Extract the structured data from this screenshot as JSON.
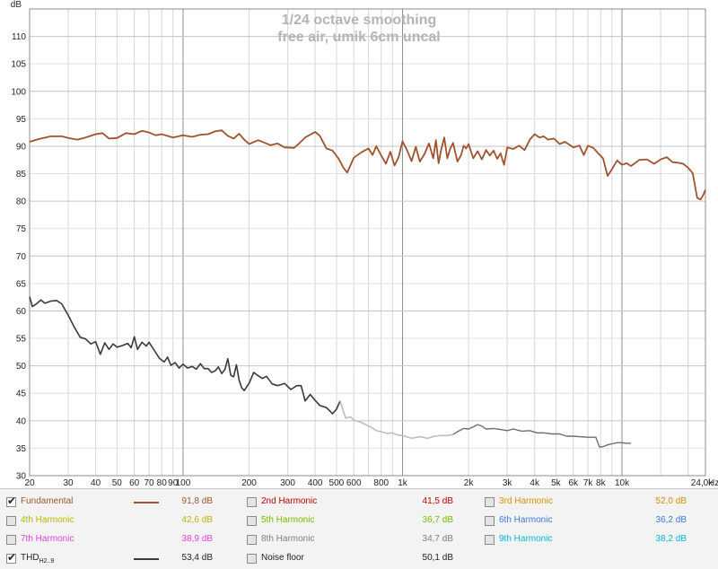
{
  "chart_data": {
    "type": "line",
    "title": "1/24 octave smoothing",
    "subtitle": "free air, umik 6cm uncal",
    "xscale": "log",
    "xlim": [
      20,
      24000
    ],
    "ylim": [
      30,
      115
    ],
    "ylabel": "dB",
    "xlabel": "Hz",
    "grid": true,
    "yticks": [
      30,
      35,
      40,
      45,
      50,
      55,
      60,
      65,
      70,
      75,
      80,
      85,
      90,
      95,
      100,
      105,
      110
    ],
    "xticks": [
      {
        "v": 20,
        "label": "20"
      },
      {
        "v": 30,
        "label": "30"
      },
      {
        "v": 40,
        "label": "40"
      },
      {
        "v": 50,
        "label": "50"
      },
      {
        "v": 60,
        "label": "60"
      },
      {
        "v": 70,
        "label": "70"
      },
      {
        "v": 80,
        "label": "80"
      },
      {
        "v": 90,
        "label": "90"
      },
      {
        "v": 100,
        "label": "100"
      },
      {
        "v": 200,
        "label": "200"
      },
      {
        "v": 300,
        "label": "300"
      },
      {
        "v": 400,
        "label": "400"
      },
      {
        "v": 500,
        "label": "500"
      },
      {
        "v": 600,
        "label": "600"
      },
      {
        "v": 800,
        "label": "800"
      },
      {
        "v": 1000,
        "label": "1k"
      },
      {
        "v": 2000,
        "label": "2k"
      },
      {
        "v": 3000,
        "label": "3k"
      },
      {
        "v": 4000,
        "label": "4k"
      },
      {
        "v": 5000,
        "label": "5k"
      },
      {
        "v": 6000,
        "label": "6k"
      },
      {
        "v": 7000,
        "label": "7k"
      },
      {
        "v": 8000,
        "label": "8k"
      },
      {
        "v": 10000,
        "label": "10k"
      },
      {
        "v": 24000,
        "label": "24,0k"
      }
    ],
    "series": [
      {
        "name": "Fundamental",
        "color": "#a0522d",
        "points": [
          [
            20,
            90.8
          ],
          [
            22,
            91.3
          ],
          [
            25,
            91.8
          ],
          [
            28,
            91.8
          ],
          [
            30,
            91.5
          ],
          [
            33,
            91.2
          ],
          [
            36,
            91.6
          ],
          [
            40,
            92.2
          ],
          [
            43,
            92.4
          ],
          [
            46,
            91.4
          ],
          [
            50,
            91.5
          ],
          [
            55,
            92.4
          ],
          [
            60,
            92.2
          ],
          [
            65,
            92.8
          ],
          [
            70,
            92.5
          ],
          [
            75,
            92.0
          ],
          [
            80,
            92.2
          ],
          [
            90,
            91.6
          ],
          [
            100,
            92.0
          ],
          [
            110,
            91.7
          ],
          [
            120,
            92.1
          ],
          [
            130,
            92.2
          ],
          [
            140,
            92.7
          ],
          [
            150,
            92.9
          ],
          [
            160,
            91.9
          ],
          [
            170,
            91.4
          ],
          [
            180,
            92.3
          ],
          [
            190,
            91.2
          ],
          [
            200,
            90.4
          ],
          [
            220,
            91.1
          ],
          [
            250,
            90.2
          ],
          [
            270,
            90.5
          ],
          [
            290,
            89.8
          ],
          [
            320,
            89.7
          ],
          [
            340,
            90.6
          ],
          [
            360,
            91.6
          ],
          [
            400,
            92.6
          ],
          [
            420,
            91.9
          ],
          [
            450,
            89.6
          ],
          [
            480,
            89.2
          ],
          [
            510,
            87.8
          ],
          [
            540,
            86.0
          ],
          [
            560,
            85.2
          ],
          [
            600,
            87.9
          ],
          [
            650,
            88.9
          ],
          [
            700,
            89.6
          ],
          [
            730,
            88.4
          ],
          [
            760,
            90.0
          ],
          [
            800,
            88.3
          ],
          [
            840,
            86.8
          ],
          [
            880,
            89.0
          ],
          [
            920,
            86.5
          ],
          [
            960,
            88.0
          ],
          [
            1000,
            90.9
          ],
          [
            1050,
            89.2
          ],
          [
            1100,
            87.3
          ],
          [
            1150,
            89.9
          ],
          [
            1200,
            87.2
          ],
          [
            1260,
            88.6
          ],
          [
            1320,
            90.5
          ],
          [
            1380,
            87.8
          ],
          [
            1420,
            91.1
          ],
          [
            1460,
            86.9
          ],
          [
            1500,
            89.3
          ],
          [
            1550,
            91.6
          ],
          [
            1600,
            87.8
          ],
          [
            1650,
            89.6
          ],
          [
            1700,
            90.6
          ],
          [
            1780,
            87.2
          ],
          [
            1850,
            88.4
          ],
          [
            1900,
            90.1
          ],
          [
            1950,
            89.6
          ],
          [
            2000,
            90.4
          ],
          [
            2100,
            87.8
          ],
          [
            2200,
            89.1
          ],
          [
            2300,
            87.6
          ],
          [
            2400,
            89.3
          ],
          [
            2500,
            88.3
          ],
          [
            2600,
            89.2
          ],
          [
            2700,
            87.7
          ],
          [
            2800,
            88.7
          ],
          [
            2900,
            86.6
          ],
          [
            3000,
            89.8
          ],
          [
            3200,
            89.5
          ],
          [
            3400,
            90.1
          ],
          [
            3600,
            89.3
          ],
          [
            3800,
            91.2
          ],
          [
            4000,
            92.2
          ],
          [
            4200,
            91.6
          ],
          [
            4400,
            91.8
          ],
          [
            4600,
            91.2
          ],
          [
            4900,
            91.4
          ],
          [
            5200,
            90.4
          ],
          [
            5500,
            90.8
          ],
          [
            6000,
            89.8
          ],
          [
            6400,
            90.1
          ],
          [
            6700,
            88.4
          ],
          [
            7000,
            90.1
          ],
          [
            7400,
            89.7
          ],
          [
            7800,
            88.7
          ],
          [
            8200,
            87.8
          ],
          [
            8600,
            84.6
          ],
          [
            9000,
            85.8
          ],
          [
            9500,
            87.4
          ],
          [
            10000,
            86.6
          ],
          [
            10500,
            86.9
          ],
          [
            11000,
            86.4
          ],
          [
            12000,
            87.5
          ],
          [
            13000,
            87.6
          ],
          [
            14000,
            86.8
          ],
          [
            15000,
            87.6
          ],
          [
            16000,
            88.0
          ],
          [
            17000,
            87.1
          ],
          [
            18000,
            87.0
          ],
          [
            19000,
            86.8
          ],
          [
            20000,
            86.1
          ],
          [
            21000,
            85.1
          ],
          [
            22000,
            80.6
          ],
          [
            22800,
            80.3
          ],
          [
            23500,
            81.2
          ],
          [
            24000,
            82.1
          ]
        ]
      },
      {
        "name": "THD H2..9",
        "color": "#3a3a3a",
        "points": [
          [
            20,
            62.6
          ],
          [
            20.6,
            60.8
          ],
          [
            21.5,
            61.3
          ],
          [
            22.5,
            62.0
          ],
          [
            23.5,
            61.4
          ],
          [
            25,
            61.8
          ],
          [
            26.5,
            61.9
          ],
          [
            28,
            61.3
          ],
          [
            30,
            59.2
          ],
          [
            32,
            57.0
          ],
          [
            34,
            55.2
          ],
          [
            36,
            54.9
          ],
          [
            38,
            54.0
          ],
          [
            40,
            54.4
          ],
          [
            42,
            52.1
          ],
          [
            44,
            54.2
          ],
          [
            46,
            53.0
          ],
          [
            48,
            54.0
          ],
          [
            50,
            53.4
          ],
          [
            53,
            53.7
          ],
          [
            56,
            54.1
          ],
          [
            58,
            53.3
          ],
          [
            60,
            55.3
          ],
          [
            62,
            53.0
          ],
          [
            65,
            54.3
          ],
          [
            68,
            53.6
          ],
          [
            70,
            54.3
          ],
          [
            74,
            52.8
          ],
          [
            78,
            51.4
          ],
          [
            82,
            50.7
          ],
          [
            85,
            51.6
          ],
          [
            88,
            50.1
          ],
          [
            92,
            50.6
          ],
          [
            96,
            49.6
          ],
          [
            100,
            50.3
          ],
          [
            105,
            49.6
          ],
          [
            110,
            49.9
          ],
          [
            115,
            49.4
          ],
          [
            120,
            50.4
          ],
          [
            125,
            49.5
          ],
          [
            130,
            49.5
          ],
          [
            135,
            48.8
          ],
          [
            140,
            49.1
          ],
          [
            145,
            49.8
          ],
          [
            150,
            48.6
          ],
          [
            155,
            49.3
          ],
          [
            160,
            51.3
          ],
          [
            165,
            48.3
          ],
          [
            170,
            48.0
          ],
          [
            175,
            50.2
          ],
          [
            180,
            47.4
          ],
          [
            185,
            46.0
          ],
          [
            190,
            45.5
          ],
          [
            195,
            46.2
          ],
          [
            200,
            46.8
          ],
          [
            210,
            48.8
          ],
          [
            220,
            48.2
          ],
          [
            230,
            47.7
          ],
          [
            240,
            48.1
          ],
          [
            255,
            46.7
          ],
          [
            270,
            46.4
          ],
          [
            290,
            46.8
          ],
          [
            310,
            45.7
          ],
          [
            330,
            46.4
          ],
          [
            345,
            46.4
          ],
          [
            360,
            43.6
          ],
          [
            380,
            44.8
          ],
          [
            400,
            43.7
          ],
          [
            420,
            42.8
          ],
          [
            450,
            42.4
          ],
          [
            480,
            41.3
          ],
          [
            500,
            42.1
          ],
          [
            520,
            43.6
          ],
          [
            550,
            40.5
          ],
          [
            580,
            40.7
          ],
          [
            600,
            40.1
          ],
          [
            640,
            39.8
          ],
          [
            680,
            39.3
          ],
          [
            720,
            38.8
          ],
          [
            760,
            38.2
          ],
          [
            800,
            38.0
          ],
          [
            850,
            37.7
          ],
          [
            900,
            37.8
          ],
          [
            950,
            37.4
          ],
          [
            1000,
            37.3
          ],
          [
            1100,
            36.8
          ],
          [
            1200,
            37.1
          ],
          [
            1300,
            36.8
          ],
          [
            1400,
            37.2
          ],
          [
            1500,
            37.3
          ],
          [
            1600,
            37.3
          ],
          [
            1700,
            37.5
          ],
          [
            1800,
            38.1
          ],
          [
            1900,
            38.6
          ],
          [
            2000,
            38.5
          ],
          [
            2100,
            38.9
          ],
          [
            2200,
            39.3
          ],
          [
            2300,
            39.0
          ],
          [
            2400,
            38.5
          ],
          [
            2600,
            38.6
          ],
          [
            2800,
            38.4
          ],
          [
            3000,
            38.2
          ],
          [
            3200,
            38.5
          ],
          [
            3500,
            38.1
          ],
          [
            3800,
            38.2
          ],
          [
            4100,
            37.8
          ],
          [
            4400,
            37.8
          ],
          [
            4800,
            37.6
          ],
          [
            5200,
            37.6
          ],
          [
            5600,
            37.2
          ],
          [
            6000,
            37.2
          ],
          [
            6400,
            37.1
          ],
          [
            7000,
            37.0
          ],
          [
            7600,
            37.0
          ],
          [
            7900,
            35.2
          ],
          [
            8200,
            35.3
          ],
          [
            8600,
            35.6
          ],
          [
            9000,
            35.8
          ],
          [
            9500,
            36.0
          ],
          [
            10000,
            36.0
          ],
          [
            10500,
            35.9
          ],
          [
            11000,
            35.9
          ]
        ]
      }
    ]
  },
  "legend": {
    "items": [
      {
        "label": "Fundamental",
        "sub": "",
        "checked": true,
        "value": "91,8 dB",
        "color": "#a0522d",
        "label_color": "#a0522d",
        "value_color": "#a0522d",
        "swatch": true
      },
      {
        "label": "2nd Harmonic",
        "sub": "",
        "checked": false,
        "value": "41,5 dB",
        "color": "#c00000",
        "label_color": "#c00000",
        "value_color": "#c00000",
        "swatch": false
      },
      {
        "label": "3rd Harmonic",
        "sub": "",
        "checked": false,
        "value": "52,0 dB",
        "color": "#d89000",
        "label_color": "#d89000",
        "value_color": "#d89000",
        "swatch": false
      },
      {
        "label": "4th Harmonic",
        "sub": "",
        "checked": false,
        "value": "42,6 dB",
        "color": "#c8c800",
        "label_color": "#b8b800",
        "value_color": "#b8b800",
        "swatch": false
      },
      {
        "label": "5th Harmonic",
        "sub": "",
        "checked": false,
        "value": "36,7 dB",
        "color": "#88c800",
        "label_color": "#7ab800",
        "value_color": "#7ab800",
        "swatch": false
      },
      {
        "label": "6th Harmonic",
        "sub": "",
        "checked": false,
        "value": "36,2 dB",
        "color": "#3c78d8",
        "label_color": "#3c78d8",
        "value_color": "#3c78d8",
        "swatch": false
      },
      {
        "label": "7th Harmonic",
        "sub": "",
        "checked": false,
        "value": "38,9 dB",
        "color": "#e040e0",
        "label_color": "#e040e0",
        "value_color": "#e040e0",
        "swatch": false
      },
      {
        "label": "8th Harmonic",
        "sub": "",
        "checked": false,
        "value": "34,7 dB",
        "color": "#808080",
        "label_color": "#808080",
        "value_color": "#808080",
        "swatch": false
      },
      {
        "label": "9th Harmonic",
        "sub": "",
        "checked": false,
        "value": "38,2 dB",
        "color": "#00b8d8",
        "label_color": "#00b8d8",
        "value_color": "#00b8d8",
        "swatch": false
      },
      {
        "label": "THD",
        "sub": "H2..9",
        "checked": true,
        "value": "53,4 dB",
        "color": "#3a3a3a",
        "label_color": "#222222",
        "value_color": "#222222",
        "swatch": true
      },
      {
        "label": "Noise floor",
        "sub": "",
        "checked": false,
        "value": "50,1 dB",
        "color": "#555555",
        "label_color": "#222222",
        "value_color": "#222222",
        "swatch": false
      }
    ]
  }
}
